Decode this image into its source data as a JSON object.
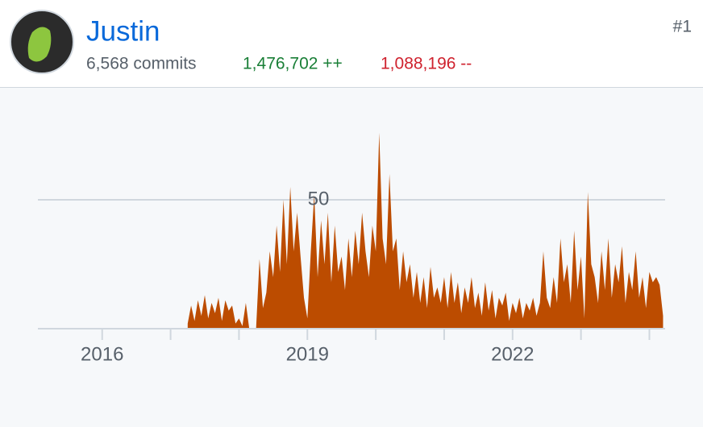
{
  "header": {
    "name": "Justin",
    "commits": "6,568 commits",
    "additions": "1,476,702 ++",
    "deletions": "1,088,196 --",
    "rank": "#1"
  },
  "chart_data": {
    "type": "area",
    "xlim": [
      2015.06,
      2024.23
    ],
    "ylim": [
      0,
      90
    ],
    "xticks": [
      2016,
      2019,
      2022
    ],
    "xminorticks": [
      2017,
      2018,
      2020,
      2021,
      2023,
      2024
    ],
    "yticks": [
      50
    ],
    "grid": true,
    "x": [
      2017.25,
      2017.3,
      2017.35,
      2017.4,
      2017.45,
      2017.5,
      2017.55,
      2017.6,
      2017.65,
      2017.7,
      2017.75,
      2017.8,
      2017.85,
      2017.9,
      2017.95,
      2018,
      2018.05,
      2018.1,
      2018.15,
      2018.2,
      2018.25,
      2018.3,
      2018.35,
      2018.4,
      2018.45,
      2018.5,
      2018.55,
      2018.6,
      2018.65,
      2018.7,
      2018.75,
      2018.8,
      2018.85,
      2018.9,
      2018.95,
      2019,
      2019.05,
      2019.1,
      2019.15,
      2019.2,
      2019.25,
      2019.3,
      2019.35,
      2019.4,
      2019.45,
      2019.5,
      2019.55,
      2019.6,
      2019.65,
      2019.7,
      2019.75,
      2019.8,
      2019.85,
      2019.9,
      2019.95,
      2020,
      2020.05,
      2020.1,
      2020.15,
      2020.2,
      2020.25,
      2020.3,
      2020.35,
      2020.4,
      2020.45,
      2020.5,
      2020.55,
      2020.6,
      2020.65,
      2020.7,
      2020.75,
      2020.8,
      2020.85,
      2020.9,
      2020.95,
      2021,
      2021.05,
      2021.1,
      2021.15,
      2021.2,
      2021.25,
      2021.3,
      2021.35,
      2021.4,
      2021.45,
      2021.5,
      2021.55,
      2021.6,
      2021.65,
      2021.7,
      2021.75,
      2021.8,
      2021.85,
      2021.9,
      2021.95,
      2022,
      2022.05,
      2022.1,
      2022.15,
      2022.2,
      2022.25,
      2022.3,
      2022.35,
      2022.4,
      2022.45,
      2022.5,
      2022.55,
      2022.6,
      2022.65,
      2022.7,
      2022.75,
      2022.8,
      2022.85,
      2022.9,
      2022.95,
      2023,
      2023.05,
      2023.1,
      2023.15,
      2023.2,
      2023.25,
      2023.3,
      2023.35,
      2023.4,
      2023.45,
      2023.5,
      2023.55,
      2023.6,
      2023.65,
      2023.7,
      2023.75,
      2023.8,
      2023.85,
      2023.9,
      2023.95,
      2024,
      2024.05,
      2024.1,
      2024.15,
      2024.2
    ],
    "series": [
      {
        "color": "#bc4c00",
        "values": [
          2,
          9,
          3,
          11,
          5,
          13,
          4,
          10,
          6,
          12,
          3,
          11,
          7,
          9,
          2,
          4,
          1,
          10,
          0,
          0,
          0,
          27,
          8,
          14,
          30,
          20,
          40,
          22,
          50,
          25,
          55,
          30,
          45,
          28,
          12,
          4,
          30,
          52,
          20,
          42,
          25,
          45,
          18,
          40,
          22,
          28,
          15,
          35,
          20,
          38,
          25,
          45,
          30,
          20,
          40,
          30,
          76,
          35,
          25,
          60,
          30,
          35,
          15,
          30,
          18,
          25,
          12,
          22,
          10,
          20,
          8,
          24,
          12,
          16,
          10,
          20,
          8,
          22,
          10,
          18,
          6,
          16,
          10,
          20,
          8,
          14,
          5,
          18,
          7,
          15,
          4,
          12,
          9,
          14,
          3,
          10,
          6,
          12,
          4,
          10,
          7,
          12,
          5,
          10,
          30,
          12,
          8,
          20,
          10,
          35,
          18,
          25,
          10,
          38,
          15,
          28,
          4,
          53,
          25,
          20,
          10,
          30,
          15,
          35,
          12,
          25,
          18,
          32,
          10,
          22,
          15,
          30,
          12,
          20,
          8,
          22,
          18,
          20,
          17,
          5
        ]
      }
    ]
  }
}
